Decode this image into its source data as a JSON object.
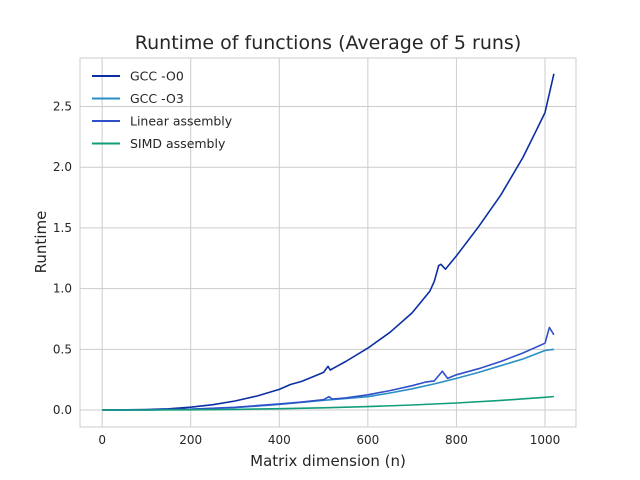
{
  "chart_data": {
    "type": "line",
    "title": "Runtime of functions (Average of 5 runs)",
    "xlabel": "Matrix dimension (n)",
    "ylabel": "Runtime",
    "xlim": [
      -50,
      1070
    ],
    "ylim": [
      -0.14,
      2.9
    ],
    "xticks": [
      0,
      200,
      400,
      600,
      800,
      1000
    ],
    "yticks": [
      0.0,
      0.5,
      1.0,
      1.5,
      2.0,
      2.5
    ],
    "xtick_labels": [
      "0",
      "200",
      "400",
      "600",
      "800",
      "1000"
    ],
    "ytick_labels": [
      "0.0",
      "0.5",
      "1.0",
      "1.5",
      "2.0",
      "2.5"
    ],
    "grid": true,
    "legend_position": "top-left",
    "series": [
      {
        "name": "GCC -O0",
        "color": "#0b2fa3",
        "x": [
          0,
          50,
          100,
          150,
          200,
          250,
          300,
          350,
          400,
          425,
          450,
          500,
          510,
          515,
          530,
          550,
          600,
          650,
          700,
          740,
          750,
          760,
          765,
          775,
          800,
          850,
          900,
          950,
          980,
          1000,
          1020
        ],
        "y": [
          0,
          0.001,
          0.004,
          0.01,
          0.023,
          0.044,
          0.074,
          0.115,
          0.17,
          0.21,
          0.235,
          0.31,
          0.36,
          0.33,
          0.36,
          0.4,
          0.51,
          0.64,
          0.8,
          0.98,
          1.06,
          1.19,
          1.2,
          1.16,
          1.27,
          1.51,
          1.77,
          2.08,
          2.3,
          2.45,
          2.77
        ]
      },
      {
        "name": "GCC -O3",
        "color": "#2a8fc6",
        "x": [
          0,
          100,
          200,
          300,
          400,
          500,
          600,
          650,
          700,
          750,
          800,
          850,
          900,
          950,
          1000,
          1020
        ],
        "y": [
          0,
          0.001,
          0.006,
          0.02,
          0.045,
          0.08,
          0.11,
          0.14,
          0.175,
          0.215,
          0.26,
          0.31,
          0.365,
          0.42,
          0.49,
          0.5
        ]
      },
      {
        "name": "Linear assembly",
        "color": "#3050c9",
        "x": [
          0,
          100,
          200,
          300,
          400,
          450,
          500,
          512,
          520,
          550,
          600,
          650,
          700,
          730,
          750,
          768,
          780,
          800,
          850,
          900,
          950,
          1000,
          1010,
          1020
        ],
        "y": [
          0,
          0.001,
          0.007,
          0.022,
          0.05,
          0.065,
          0.085,
          0.11,
          0.09,
          0.1,
          0.125,
          0.16,
          0.2,
          0.23,
          0.24,
          0.32,
          0.26,
          0.29,
          0.34,
          0.4,
          0.47,
          0.55,
          0.68,
          0.62
        ]
      },
      {
        "name": "SIMD assembly",
        "color": "#129d7a",
        "x": [
          0,
          100,
          200,
          300,
          400,
          500,
          600,
          700,
          800,
          900,
          1000,
          1020
        ],
        "y": [
          0,
          0.0003,
          0.002,
          0.005,
          0.011,
          0.018,
          0.028,
          0.041,
          0.058,
          0.079,
          0.105,
          0.111
        ]
      }
    ]
  }
}
